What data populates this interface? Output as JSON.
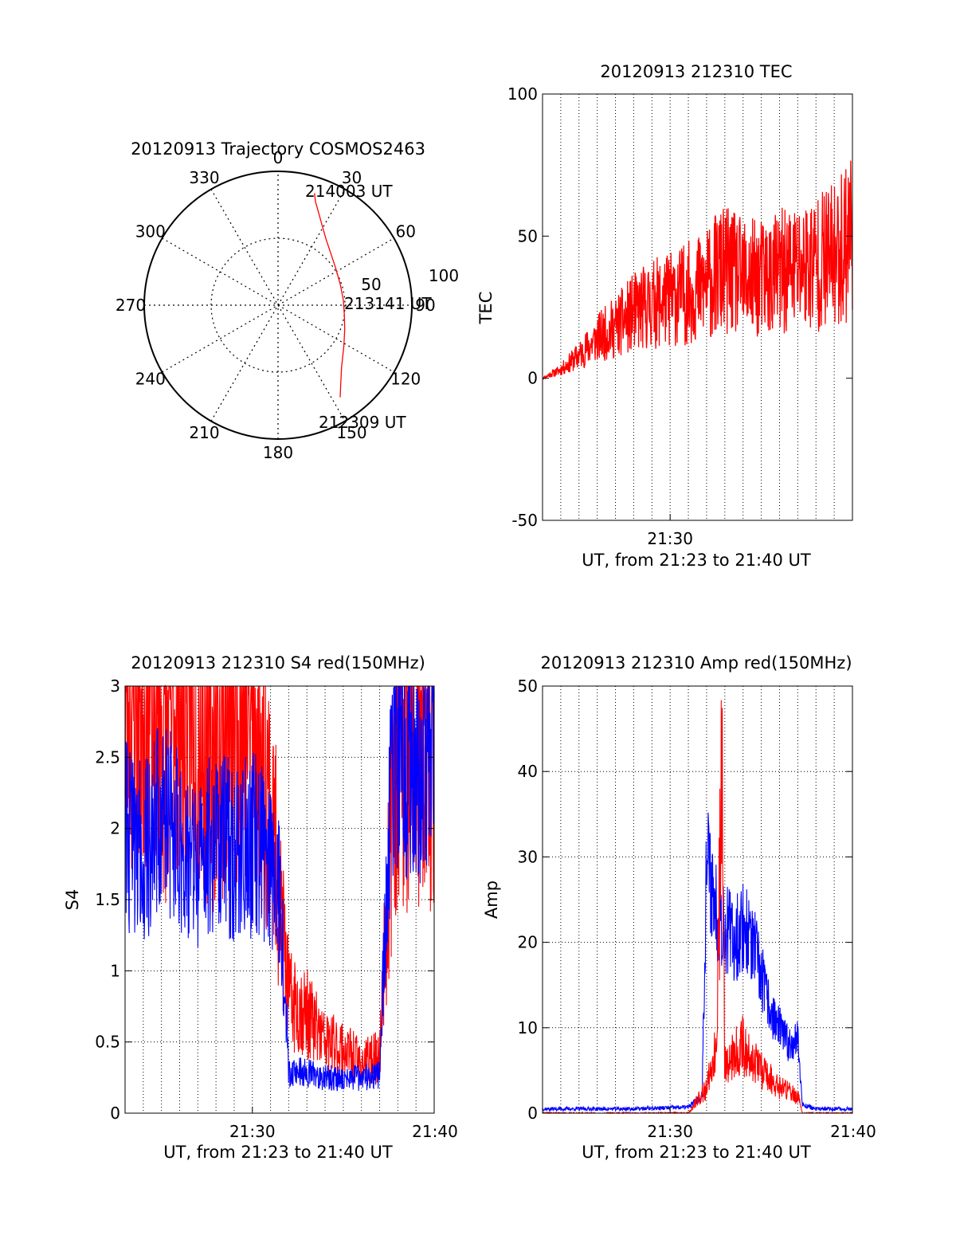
{
  "colors": {
    "red": "#ff0000",
    "blue": "#0000ff",
    "axis": "#000000",
    "grid": "#000000"
  },
  "chart_data": [
    {
      "type": "polar",
      "title": "20120913 Trajectory COSMOS2463",
      "angle_labels": [
        "0",
        "30",
        "60",
        "90",
        "120",
        "150",
        "180",
        "210",
        "240",
        "270",
        "300",
        "330"
      ],
      "radial_labels": [
        "50",
        "100"
      ],
      "rlim": [
        0,
        100
      ],
      "grid": true,
      "series": [
        {
          "color": "#ff0000",
          "azimuth": [
            18,
            20,
            24,
            29,
            36,
            46,
            58,
            72,
            86,
            98,
            110,
            122,
            134,
            142,
            146
          ],
          "radius": [
            88,
            82,
            75,
            68,
            61,
            55,
            51,
            49,
            49,
            50,
            53,
            58,
            66,
            76,
            83
          ]
        }
      ],
      "annotations": [
        {
          "text": "214003 UT",
          "azimuth": 18,
          "radius": 88
        },
        {
          "text": "213141 UT",
          "azimuth": 86,
          "radius": 49
        },
        {
          "text": "212309 UT",
          "azimuth": 146,
          "radius": 83
        }
      ]
    },
    {
      "type": "line",
      "title": "20120913 212310 TEC",
      "xlabel": "UT, from 21:23 to 21:40 UT",
      "ylabel": "TEC",
      "xlim": [
        "21:23",
        "21:40"
      ],
      "ylim": [
        -50,
        100
      ],
      "x_ticks": [
        "21:30"
      ],
      "y_ticks": [
        "-50",
        "0",
        "50",
        "100"
      ],
      "grid": "vertical-dotted",
      "series": [
        {
          "color": "#ff0000",
          "x": [
            "21:23",
            "21:24",
            "21:25",
            "21:26",
            "21:27",
            "21:28",
            "21:29",
            "21:30",
            "21:31",
            "21:32",
            "21:32:30",
            "21:33",
            "21:34",
            "21:35",
            "21:36",
            "21:37",
            "21:38",
            "21:39",
            "21:39:30",
            "21:40"
          ],
          "y": [
            0,
            3,
            8,
            14,
            18,
            23,
            26,
            28,
            30,
            33,
            36,
            38,
            35,
            35,
            37,
            39,
            41,
            43,
            47,
            54
          ]
        }
      ]
    },
    {
      "type": "line",
      "title": "20120913 212310 S4 red(150MHz)",
      "xlabel": "UT, from 21:23 to 21:40 UT",
      "ylabel": "S4",
      "xlim": [
        "21:23",
        "21:40"
      ],
      "ylim": [
        0,
        3
      ],
      "x_ticks": [
        "21:30",
        "21:40"
      ],
      "y_ticks": [
        "0",
        "0.5",
        "1",
        "1.5",
        "2",
        "2.5",
        "3"
      ],
      "grid": true,
      "series": [
        {
          "color": "#ff0000",
          "x": [
            "21:23",
            "21:24",
            "21:25",
            "21:26",
            "21:27",
            "21:28",
            "21:29",
            "21:30",
            "21:31",
            "21:31:30",
            "21:32",
            "21:33",
            "21:34",
            "21:35",
            "21:36",
            "21:37",
            "21:37:30",
            "21:38",
            "21:39",
            "21:40"
          ],
          "y": [
            2.9,
            3.0,
            2.6,
            3.0,
            2.8,
            2.5,
            3.0,
            2.7,
            2.2,
            1.5,
            0.8,
            0.7,
            0.5,
            0.45,
            0.35,
            0.4,
            1.7,
            2.7,
            2.4,
            2.5
          ]
        },
        {
          "color": "#0000ff",
          "x": [
            "21:23",
            "21:24",
            "21:25",
            "21:26",
            "21:27",
            "21:28",
            "21:29",
            "21:30",
            "21:31",
            "21:31:30",
            "21:32",
            "21:33",
            "21:34",
            "21:35",
            "21:36",
            "21:37",
            "21:37:30",
            "21:38",
            "21:39",
            "21:40"
          ],
          "y": [
            2.0,
            1.8,
            2.1,
            1.9,
            1.7,
            2.0,
            1.8,
            1.9,
            1.8,
            1.6,
            0.3,
            0.28,
            0.25,
            0.24,
            0.25,
            0.27,
            2.0,
            2.6,
            2.4,
            2.6
          ]
        }
      ]
    },
    {
      "type": "line",
      "title": "20120913 212310 Amp red(150MHz)",
      "xlabel": "UT, from 21:23 to 21:40 UT",
      "ylabel": "Amp",
      "xlim": [
        "21:23",
        "21:40"
      ],
      "ylim": [
        0,
        50
      ],
      "x_ticks": [
        "21:30",
        "21:40"
      ],
      "y_ticks": [
        "0",
        "10",
        "20",
        "30",
        "40",
        "50"
      ],
      "grid": true,
      "series": [
        {
          "color": "#0000ff",
          "x": [
            "21:23",
            "21:25",
            "21:28",
            "21:31",
            "21:31:45",
            "21:32",
            "21:32:30",
            "21:33",
            "21:33:30",
            "21:34",
            "21:34:30",
            "21:35",
            "21:35:30",
            "21:36",
            "21:36:30",
            "21:37",
            "21:37:15",
            "21:38",
            "21:40"
          ],
          "y": [
            0.5,
            0.5,
            0.5,
            0.7,
            2,
            30,
            24,
            22,
            20,
            22,
            20,
            16,
            12,
            10,
            8,
            9,
            1,
            0.5,
            0.5
          ]
        },
        {
          "color": "#ff0000",
          "x": [
            "21:23",
            "21:31",
            "21:32",
            "21:32:30",
            "21:32:50",
            "21:33",
            "21:33:30",
            "21:34",
            "21:35",
            "21:36",
            "21:37",
            "21:37:15",
            "21:40"
          ],
          "y": [
            0,
            0,
            3,
            8,
            40,
            6,
            7,
            8,
            5,
            3,
            2,
            0,
            0
          ]
        }
      ]
    }
  ]
}
